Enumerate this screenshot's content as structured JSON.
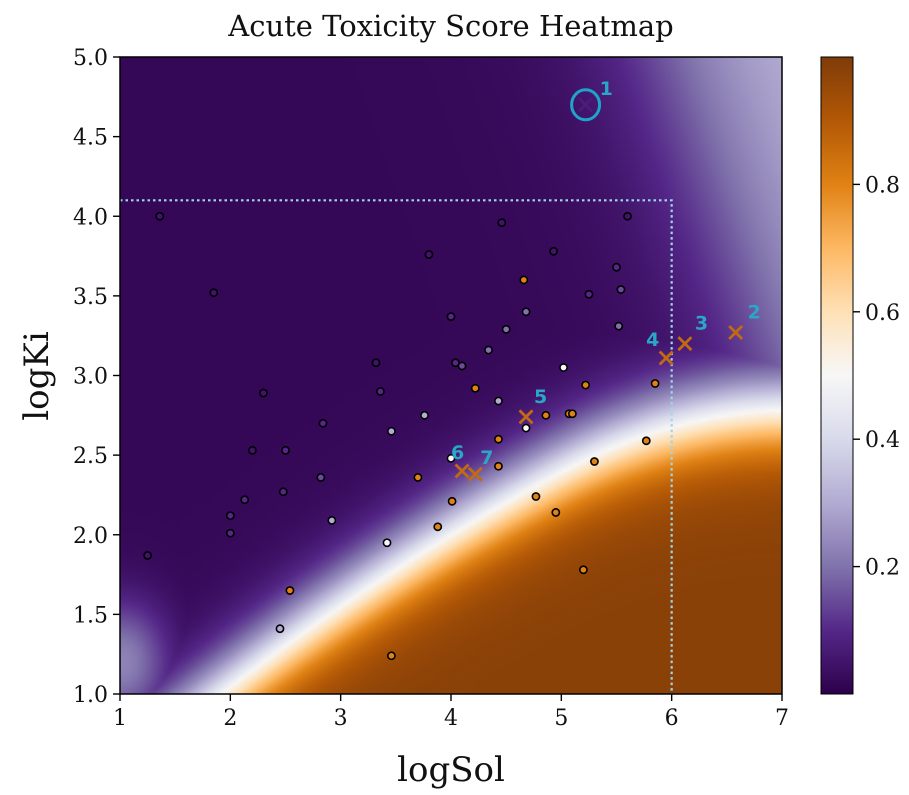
{
  "chart_data": {
    "type": "heatmap",
    "title": "Acute Toxicity Score Heatmap",
    "xlabel": "logSol",
    "ylabel": "logKi",
    "xlim": [
      1,
      7
    ],
    "ylim": [
      1.0,
      5.0
    ],
    "xticks": [
      "1",
      "2",
      "3",
      "4",
      "5",
      "6",
      "7"
    ],
    "yticks": [
      "1.0",
      "1.5",
      "2.0",
      "2.5",
      "3.0",
      "3.5",
      "4.0",
      "4.5",
      "5.0"
    ],
    "colorbar": {
      "min": 0.0,
      "max": 1.0,
      "ticks": [
        "0.2",
        "0.4",
        "0.6",
        "0.8"
      ],
      "colormap": [
        "#2d004b",
        "#542788",
        "#8073ac",
        "#b2abd2",
        "#d8daeb",
        "#f7f7f7",
        "#fee0b6",
        "#fdb863",
        "#e08214",
        "#b35806",
        "#7f3b08"
      ]
    },
    "threshold_lines": {
      "x": 6.0,
      "y": 4.1
    },
    "highlight_circle": {
      "x": 5.22,
      "y": 4.7
    },
    "marked_compounds": [
      {
        "label": "1",
        "x": 5.22,
        "y": 4.7,
        "score": 0.05
      },
      {
        "label": "2",
        "x": 6.58,
        "y": 3.27,
        "score": 0.85
      },
      {
        "label": "3",
        "x": 6.12,
        "y": 3.2,
        "score": 0.8
      },
      {
        "label": "4",
        "x": 5.95,
        "y": 3.11,
        "score": 0.8
      },
      {
        "label": "5",
        "x": 4.68,
        "y": 2.74,
        "score": 0.75
      },
      {
        "label": "6",
        "x": 4.1,
        "y": 2.4,
        "score": 0.75
      },
      {
        "label": "7",
        "x": 4.22,
        "y": 2.38,
        "score": 0.75
      }
    ],
    "points": [
      {
        "x": 1.25,
        "y": 1.87,
        "score": 0.05
      },
      {
        "x": 1.36,
        "y": 4.0,
        "score": 0.05
      },
      {
        "x": 1.85,
        "y": 3.52,
        "score": 0.05
      },
      {
        "x": 2.0,
        "y": 2.12,
        "score": 0.1
      },
      {
        "x": 2.0,
        "y": 2.01,
        "score": 0.1
      },
      {
        "x": 2.13,
        "y": 2.22,
        "score": 0.1
      },
      {
        "x": 2.2,
        "y": 2.53,
        "score": 0.05
      },
      {
        "x": 2.3,
        "y": 2.89,
        "score": 0.05
      },
      {
        "x": 2.48,
        "y": 2.27,
        "score": 0.1
      },
      {
        "x": 2.5,
        "y": 2.53,
        "score": 0.1
      },
      {
        "x": 2.45,
        "y": 1.41,
        "score": 0.3
      },
      {
        "x": 2.54,
        "y": 1.65,
        "score": 0.8
      },
      {
        "x": 2.82,
        "y": 2.36,
        "score": 0.15
      },
      {
        "x": 2.84,
        "y": 2.7,
        "score": 0.1
      },
      {
        "x": 2.92,
        "y": 2.09,
        "score": 0.3
      },
      {
        "x": 3.32,
        "y": 3.08,
        "score": 0.05
      },
      {
        "x": 3.36,
        "y": 2.9,
        "score": 0.1
      },
      {
        "x": 3.42,
        "y": 1.95,
        "score": 0.5
      },
      {
        "x": 3.46,
        "y": 2.65,
        "score": 0.3
      },
      {
        "x": 3.46,
        "y": 1.24,
        "score": 0.8
      },
      {
        "x": 3.7,
        "y": 2.36,
        "score": 0.8
      },
      {
        "x": 3.76,
        "y": 2.75,
        "score": 0.3
      },
      {
        "x": 3.8,
        "y": 3.76,
        "score": 0.05
      },
      {
        "x": 3.88,
        "y": 2.05,
        "score": 0.8
      },
      {
        "x": 4.0,
        "y": 3.37,
        "score": 0.1
      },
      {
        "x": 4.0,
        "y": 2.48,
        "score": 0.5
      },
      {
        "x": 4.01,
        "y": 2.21,
        "score": 0.8
      },
      {
        "x": 4.04,
        "y": 3.08,
        "score": 0.1
      },
      {
        "x": 4.1,
        "y": 3.06,
        "score": 0.15
      },
      {
        "x": 4.22,
        "y": 2.92,
        "score": 0.8
      },
      {
        "x": 4.34,
        "y": 3.16,
        "score": 0.2
      },
      {
        "x": 4.43,
        "y": 2.84,
        "score": 0.3
      },
      {
        "x": 4.43,
        "y": 2.6,
        "score": 0.8
      },
      {
        "x": 4.43,
        "y": 2.43,
        "score": 0.8
      },
      {
        "x": 4.46,
        "y": 3.96,
        "score": 0.05
      },
      {
        "x": 4.5,
        "y": 3.29,
        "score": 0.2
      },
      {
        "x": 4.66,
        "y": 3.6,
        "score": 0.8
      },
      {
        "x": 4.68,
        "y": 3.4,
        "score": 0.2
      },
      {
        "x": 4.68,
        "y": 2.67,
        "score": 0.5
      },
      {
        "x": 4.77,
        "y": 2.24,
        "score": 0.8
      },
      {
        "x": 4.86,
        "y": 2.75,
        "score": 0.8
      },
      {
        "x": 4.93,
        "y": 3.78,
        "score": 0.05
      },
      {
        "x": 4.95,
        "y": 2.14,
        "score": 0.8
      },
      {
        "x": 5.02,
        "y": 3.05,
        "score": 0.5
      },
      {
        "x": 5.07,
        "y": 2.76,
        "score": 0.8
      },
      {
        "x": 5.1,
        "y": 2.76,
        "score": 0.8
      },
      {
        "x": 5.2,
        "y": 1.78,
        "score": 0.8
      },
      {
        "x": 5.22,
        "y": 2.94,
        "score": 0.8
      },
      {
        "x": 5.25,
        "y": 3.51,
        "score": 0.1
      },
      {
        "x": 5.3,
        "y": 2.46,
        "score": 0.8
      },
      {
        "x": 5.5,
        "y": 3.68,
        "score": 0.1
      },
      {
        "x": 5.52,
        "y": 3.31,
        "score": 0.2
      },
      {
        "x": 5.54,
        "y": 3.54,
        "score": 0.15
      },
      {
        "x": 5.6,
        "y": 4.0,
        "score": 0.05
      },
      {
        "x": 5.77,
        "y": 2.59,
        "score": 0.8
      },
      {
        "x": 5.85,
        "y": 2.95,
        "score": 0.8
      }
    ]
  }
}
